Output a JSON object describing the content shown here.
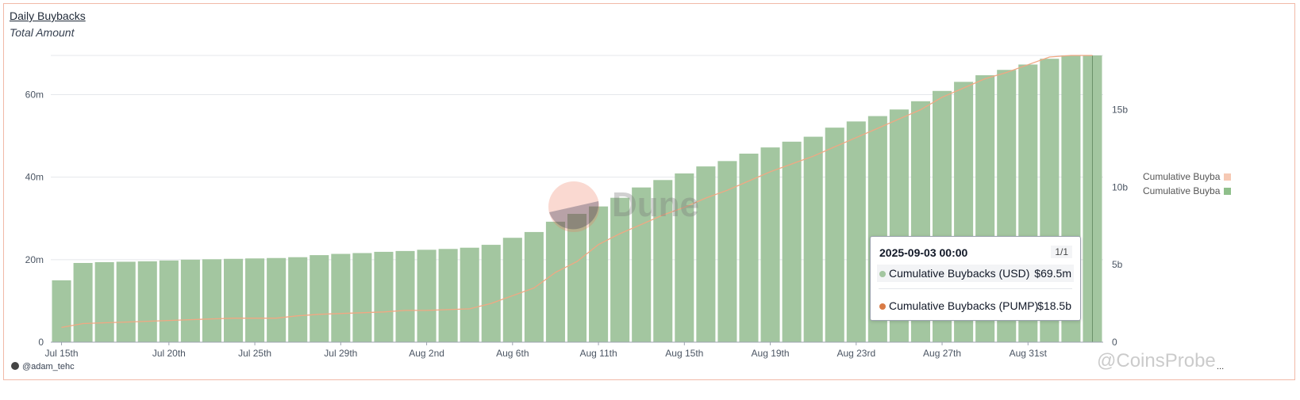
{
  "header": {
    "title": "Daily Buybacks",
    "subtitle": "Total Amount"
  },
  "author": "@adam_tehc",
  "watermarks": {
    "dune": "Dune",
    "coinsprobe": "@CoinsProbe"
  },
  "more_menu": "...",
  "colors": {
    "bar": "#a3c6a0",
    "line": "#f0a883",
    "frame": "#f1b9a8",
    "legend_line_swatch": "#f6c9b4",
    "legend_bar_swatch": "#8fbf8b"
  },
  "legend": {
    "items": [
      {
        "label": "Cumulative Buyba",
        "color": "#f6c9b4"
      },
      {
        "label": "Cumulative Buyba",
        "color": "#8fbf8b"
      }
    ]
  },
  "tooltip": {
    "date": "2025-09-03 00:00",
    "page": "1/1",
    "rows": [
      {
        "label": "Cumulative Buybacks (USD)",
        "value": "$69.5m",
        "dot": "#a3c6a0"
      },
      {
        "label": "Cumulative Buybacks (PUMP)",
        "value": "$18.5b",
        "dot": "#d97b45"
      }
    ]
  },
  "chart_data": {
    "type": "bar",
    "x_ticks": [
      "Jul 15th",
      "Jul 20th",
      "Jul 25th",
      "Jul 29th",
      "Aug 2nd",
      "Aug 6th",
      "Aug 11th",
      "Aug 15th",
      "Aug 19th",
      "Aug 23rd",
      "Aug 27th",
      "Aug 31st"
    ],
    "y_left_ticks": [
      "0",
      "20m",
      "40m",
      "60m"
    ],
    "y_right_ticks": [
      "0",
      "5b",
      "10b",
      "15b"
    ],
    "y_left_lim": [
      0,
      69.5
    ],
    "y_right_lim": [
      0,
      18.5
    ],
    "grid": true,
    "legend_position": "right",
    "series": [
      {
        "name": "Cumulative Buybacks (USD)",
        "type": "bar",
        "axis": "left",
        "unit": "m",
        "values": [
          15.0,
          19.2,
          19.4,
          19.5,
          19.6,
          19.8,
          20.0,
          20.1,
          20.2,
          20.3,
          20.4,
          20.6,
          21.1,
          21.4,
          21.6,
          21.9,
          22.1,
          22.4,
          22.6,
          22.9,
          23.6,
          25.3,
          26.7,
          29.2,
          31.1,
          32.9,
          35.0,
          37.5,
          39.3,
          40.9,
          42.6,
          43.9,
          45.7,
          47.2,
          48.6,
          49.8,
          52.0,
          53.5,
          54.8,
          56.4,
          58.4,
          60.9,
          63.1,
          64.7,
          66.0,
          67.3,
          68.7,
          69.5,
          69.5
        ]
      },
      {
        "name": "Cumulative Buybacks (PUMP)",
        "type": "line",
        "axis": "right",
        "unit": "b",
        "values": [
          0.95,
          1.2,
          1.25,
          1.3,
          1.35,
          1.4,
          1.45,
          1.5,
          1.55,
          1.55,
          1.55,
          1.7,
          1.8,
          1.85,
          1.9,
          1.95,
          2.05,
          2.05,
          2.1,
          2.15,
          2.5,
          3.0,
          3.5,
          4.5,
          5.2,
          6.3,
          7.0,
          7.6,
          8.2,
          8.7,
          9.3,
          9.8,
          10.4,
          11.0,
          11.5,
          12.0,
          12.6,
          13.2,
          13.8,
          14.4,
          15.0,
          15.8,
          16.4,
          17.0,
          17.4,
          17.9,
          18.4,
          18.5,
          18.5
        ]
      }
    ]
  }
}
